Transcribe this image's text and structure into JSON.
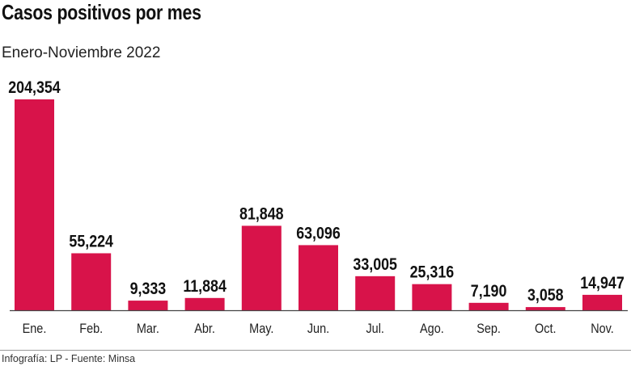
{
  "chart_data": {
    "type": "bar",
    "title": "Casos positivos por mes",
    "subtitle": "Enero-Noviembre 2022",
    "categories": [
      "Ene.",
      "Feb.",
      "Mar.",
      "Abr.",
      "May.",
      "Jun.",
      "Jul.",
      "Ago.",
      "Sep.",
      "Oct.",
      "Nov."
    ],
    "values": [
      204354,
      55224,
      9333,
      11884,
      81848,
      63096,
      33005,
      25316,
      7190,
      3058,
      14947
    ],
    "labels": [
      "204,354",
      "55,224",
      "9,333",
      "11,884",
      "81,848",
      "63,096",
      "33,005",
      "25,316",
      "7,190",
      "3,058",
      "14,947"
    ],
    "xlabel": "",
    "ylabel": "",
    "ylim": [
      0,
      204354
    ],
    "grid": false,
    "bar_color": "#d8134a"
  },
  "footer": "Infografía: LP - Fuente:  Minsa"
}
